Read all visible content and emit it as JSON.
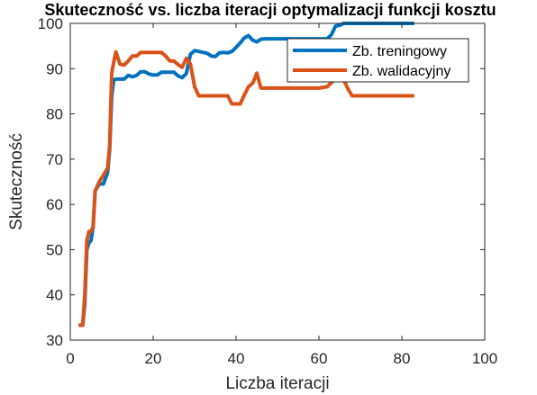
{
  "chart_data": {
    "type": "line",
    "title": "Skuteczność vs. liczba iteracji optymalizacji funkcji kosztu",
    "xlabel": "Liczba iteracji",
    "ylabel": "Skuteczność",
    "xlim": [
      0,
      100
    ],
    "ylim": [
      30,
      100
    ],
    "xticks": [
      0,
      20,
      40,
      60,
      80,
      100
    ],
    "yticks": [
      30,
      40,
      50,
      60,
      70,
      80,
      90,
      100
    ],
    "grid": false,
    "legend_position": "top-right",
    "series": [
      {
        "name": "Zb. treningowy",
        "color": "#0072BD",
        "x": [
          2,
          3,
          3.5,
          4,
          4.5,
          5,
          5.5,
          6,
          7,
          8,
          9,
          9.5,
          10,
          10.5,
          11,
          12,
          13,
          14,
          15,
          16,
          17,
          18,
          19,
          20,
          21,
          22,
          23,
          24,
          25,
          26,
          27,
          28,
          29,
          30,
          31,
          32,
          33,
          34,
          35,
          36,
          37,
          38,
          39,
          40,
          41,
          42,
          43,
          44,
          45,
          46,
          47,
          48,
          50,
          52,
          54,
          56,
          58,
          60,
          62,
          63,
          64,
          65,
          66,
          68,
          70,
          72,
          74,
          76,
          78,
          80,
          82,
          83
        ],
        "y": [
          33.3,
          33.3,
          38,
          50,
          51.5,
          52,
          55,
          63,
          64.5,
          64.5,
          67,
          72,
          84,
          87.5,
          87.7,
          87.7,
          87.7,
          88.5,
          88.2,
          88.5,
          89.3,
          89.3,
          88.8,
          88.6,
          88.6,
          89.2,
          89.2,
          89.2,
          89.2,
          88.4,
          88,
          88.9,
          93.2,
          94,
          93.8,
          93.6,
          93.4,
          92.8,
          92.7,
          93.5,
          93.6,
          93.5,
          93.8,
          94.7,
          95.7,
          96.8,
          97.3,
          96.3,
          95.9,
          96.5,
          96.6,
          96.6,
          96.6,
          96.6,
          96.6,
          96.6,
          96.6,
          96.6,
          96.6,
          97.5,
          99.4,
          99.6,
          100,
          100,
          100,
          100,
          100,
          100,
          100,
          100,
          100,
          100
        ]
      },
      {
        "name": "Zb. walidacyjny",
        "color": "#D95319",
        "x": [
          2,
          3,
          3.5,
          4,
          4.5,
          5,
          5.5,
          6,
          7,
          8,
          9,
          9.5,
          10,
          10.5,
          11,
          12,
          13,
          14,
          15,
          16,
          17,
          18,
          19,
          20,
          21,
          22,
          23,
          24,
          25,
          26,
          27,
          28,
          29,
          30,
          31,
          32,
          34,
          36,
          38,
          39,
          40,
          41,
          42,
          43,
          44,
          44.5,
          45,
          46,
          48,
          50,
          52,
          54,
          56,
          58,
          60,
          62,
          64,
          66,
          67,
          68,
          70,
          72,
          74,
          76,
          78,
          80,
          82,
          83
        ],
        "y": [
          33.3,
          33.3,
          40,
          52,
          54,
          54,
          55,
          63,
          65,
          66.5,
          68,
          73,
          89,
          91.5,
          93.7,
          91,
          90.8,
          91.7,
          92.8,
          92.8,
          93.6,
          93.6,
          93.6,
          93.6,
          93.6,
          93.6,
          92.8,
          91.7,
          91.7,
          90.9,
          90.3,
          92.3,
          91,
          86,
          84,
          84,
          84,
          84,
          84,
          82.2,
          82.2,
          82.2,
          84.2,
          86,
          86.8,
          87.8,
          89,
          85.7,
          85.7,
          85.7,
          85.7,
          85.7,
          85.7,
          85.7,
          85.7,
          86,
          87.8,
          87.5,
          85.5,
          84,
          84,
          84,
          84,
          84,
          84,
          84,
          84,
          84
        ]
      }
    ]
  }
}
